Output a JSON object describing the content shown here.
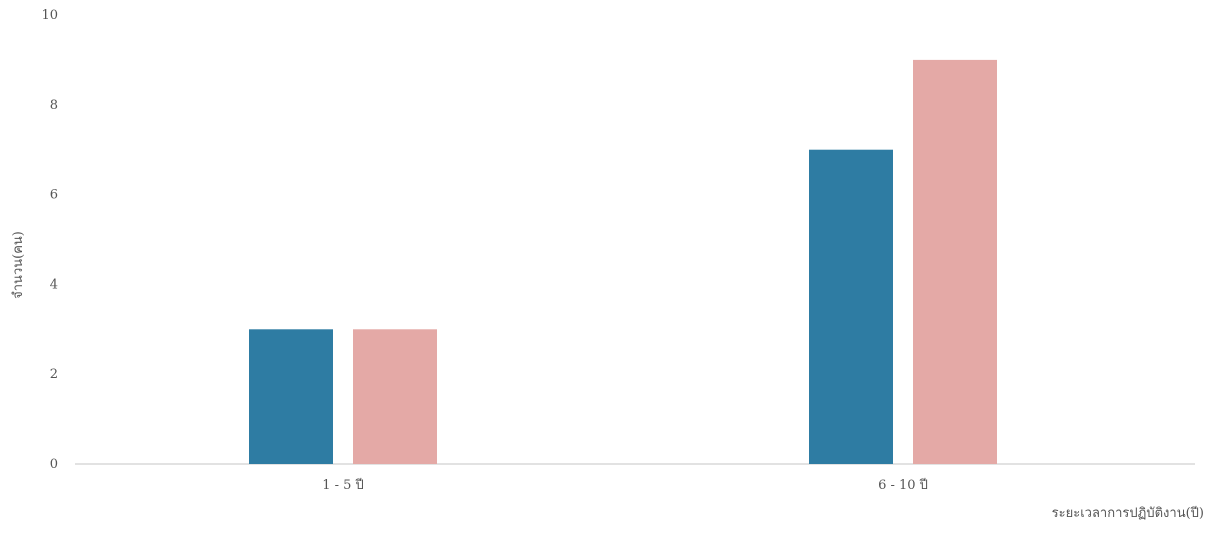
{
  "chart_data": {
    "type": "bar",
    "categories": [
      "1 - 5 ปี",
      "6 - 10 ปี"
    ],
    "series": [
      {
        "values": [
          3,
          7
        ],
        "color": "#2e7ca3"
      },
      {
        "values": [
          3,
          9
        ],
        "color": "#e4a9a6"
      }
    ],
    "ylabel": "จำนวน(คน)",
    "xlabel": "ระยะเวลาการปฏิบัติงาน(ปี)",
    "ylim": [
      0,
      10
    ],
    "yticks": [
      0,
      2,
      4,
      6,
      8,
      10
    ],
    "grid": false
  }
}
